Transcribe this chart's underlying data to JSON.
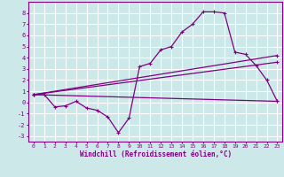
{
  "background_color": "#cce8e8",
  "grid_color": "#ffffff",
  "line_color": "#800080",
  "xlim": [
    -0.5,
    23.5
  ],
  "ylim": [
    -3.5,
    9.0
  ],
  "xlabel": "Windchill (Refroidissement éolien,°C)",
  "xticks": [
    0,
    1,
    2,
    3,
    4,
    5,
    6,
    7,
    8,
    9,
    10,
    11,
    12,
    13,
    14,
    15,
    16,
    17,
    18,
    19,
    20,
    21,
    22,
    23
  ],
  "yticks": [
    -3,
    -2,
    -1,
    0,
    1,
    2,
    3,
    4,
    5,
    6,
    7,
    8
  ],
  "series1_x": [
    0,
    1,
    2,
    3,
    4,
    5,
    6,
    7,
    8,
    9,
    10,
    11,
    12,
    13,
    14,
    15,
    16,
    17,
    18,
    19,
    20,
    21,
    22,
    23
  ],
  "series1_y": [
    0.7,
    0.7,
    -0.4,
    -0.3,
    0.1,
    -0.5,
    -0.7,
    -1.3,
    -2.7,
    -1.4,
    3.2,
    3.5,
    4.7,
    5.0,
    6.3,
    7.0,
    8.1,
    8.1,
    8.0,
    4.5,
    4.3,
    3.3,
    2.0,
    0.1
  ],
  "series2_x": [
    0,
    23
  ],
  "series2_y": [
    0.7,
    0.1
  ],
  "series3_x": [
    0,
    23
  ],
  "series3_y": [
    0.7,
    3.6
  ],
  "series4_x": [
    0,
    23
  ],
  "series4_y": [
    0.7,
    4.2
  ]
}
